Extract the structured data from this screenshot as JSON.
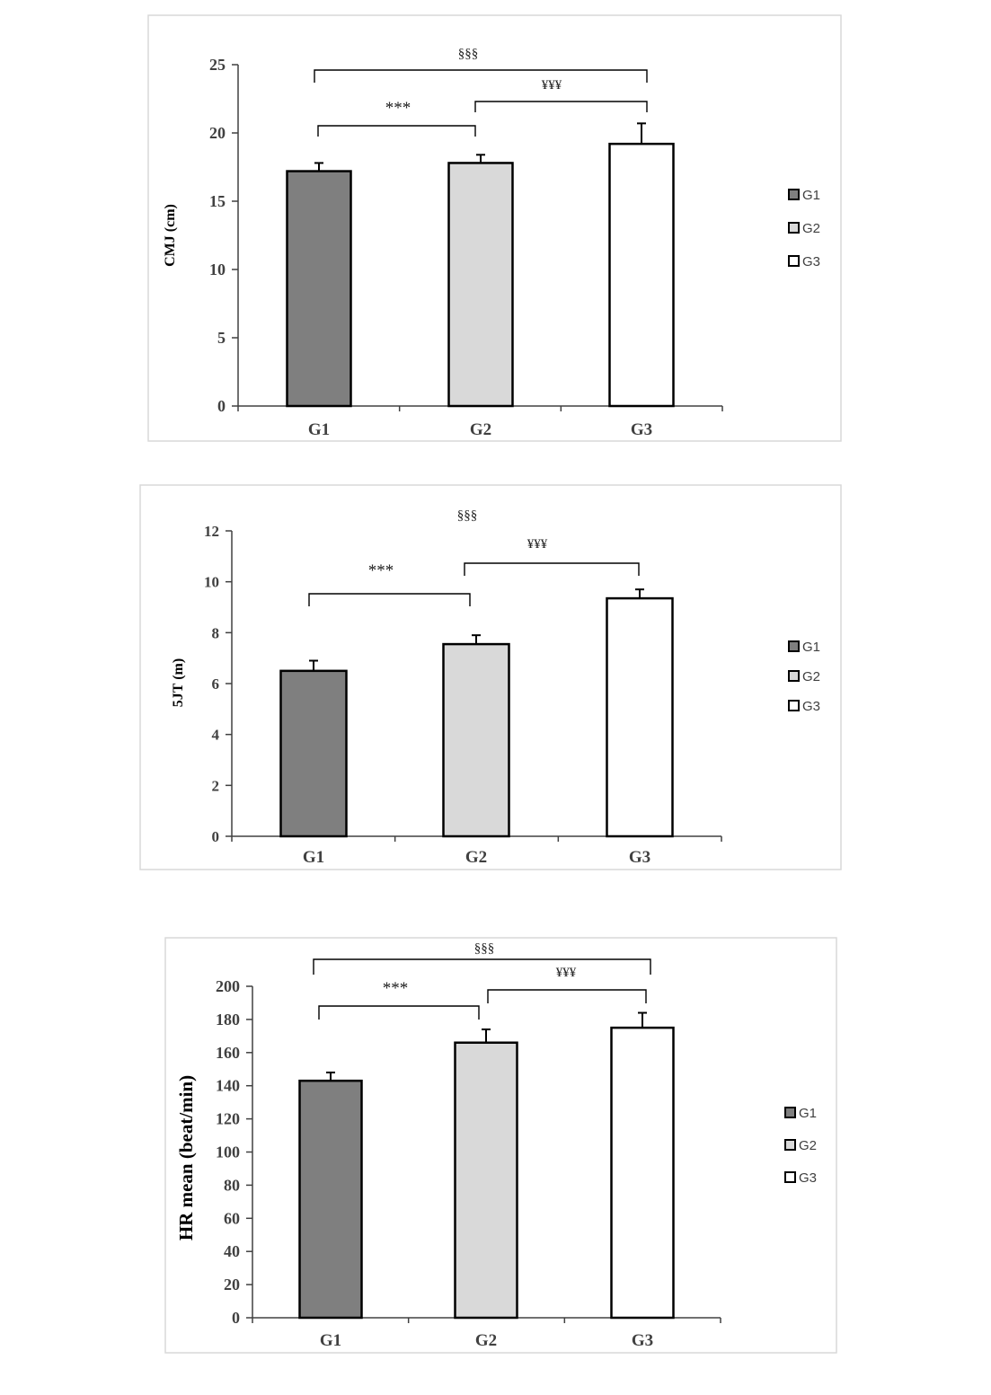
{
  "chart_data": [
    {
      "type": "bar",
      "title": "",
      "xlabel": "",
      "ylabel": "CMJ (cm)",
      "categories": [
        "G1",
        "G2",
        "G3"
      ],
      "values": [
        17.2,
        17.8,
        19.2
      ],
      "errors": [
        0.6,
        0.6,
        1.5
      ],
      "ylim": [
        0,
        25
      ],
      "yticks": [
        0,
        5,
        10,
        15,
        20,
        25
      ],
      "ytick_labels": [
        "0",
        "5",
        "10",
        "15",
        "20",
        "25"
      ],
      "colors": [
        "#7f7f7f",
        "#d9d9d9",
        "#ffffff"
      ],
      "legend": [
        "G1",
        "G2",
        "G3"
      ],
      "legend_position": "right",
      "annotations": [
        {
          "text": "***",
          "from": "G1",
          "to": "G2"
        },
        {
          "text": "¥¥¥",
          "from": "G2",
          "to": "G3"
        },
        {
          "text": "§§§",
          "from": "G1",
          "to": "G3"
        }
      ]
    },
    {
      "type": "bar",
      "title": "",
      "xlabel": "",
      "ylabel": "5JT (m)",
      "categories": [
        "G1",
        "G2",
        "G3"
      ],
      "values": [
        6.5,
        7.55,
        9.35
      ],
      "errors": [
        0.4,
        0.35,
        0.35
      ],
      "ylim": [
        0,
        12
      ],
      "yticks": [
        0,
        2,
        4,
        6,
        8,
        10,
        12
      ],
      "ytick_labels": [
        "0",
        "2",
        "4",
        "6",
        "8",
        "10",
        "12"
      ],
      "colors": [
        "#7f7f7f",
        "#d9d9d9",
        "#ffffff"
      ],
      "legend": [
        "G1",
        "G2",
        "G3"
      ],
      "legend_position": "right",
      "annotations": [
        {
          "text": "***",
          "from": "G1",
          "to": "G2"
        },
        {
          "text": "¥¥¥",
          "from": "G2",
          "to": "G3"
        },
        {
          "text": "§§§",
          "from": "G1",
          "to": "G3"
        }
      ]
    },
    {
      "type": "bar",
      "title": "",
      "xlabel": "",
      "ylabel": "HR mean (beat/min)",
      "categories": [
        "G1",
        "G2",
        "G3"
      ],
      "values": [
        143,
        166,
        175
      ],
      "errors": [
        5,
        8,
        9
      ],
      "ylim": [
        0,
        200
      ],
      "yticks": [
        0,
        20,
        40,
        60,
        80,
        100,
        120,
        140,
        160,
        180,
        200
      ],
      "ytick_labels": [
        "0",
        "20",
        "40",
        "60",
        "80",
        "100",
        "120",
        "140",
        "160",
        "180",
        "200"
      ],
      "colors": [
        "#7f7f7f",
        "#d9d9d9",
        "#ffffff"
      ],
      "legend": [
        "G1",
        "G2",
        "G3"
      ],
      "legend_position": "right",
      "annotations": [
        {
          "text": "***",
          "from": "G1",
          "to": "G2"
        },
        {
          "text": "¥¥¥",
          "from": "G2",
          "to": "G3"
        },
        {
          "text": "§§§",
          "from": "G1",
          "to": "G3"
        }
      ]
    }
  ]
}
